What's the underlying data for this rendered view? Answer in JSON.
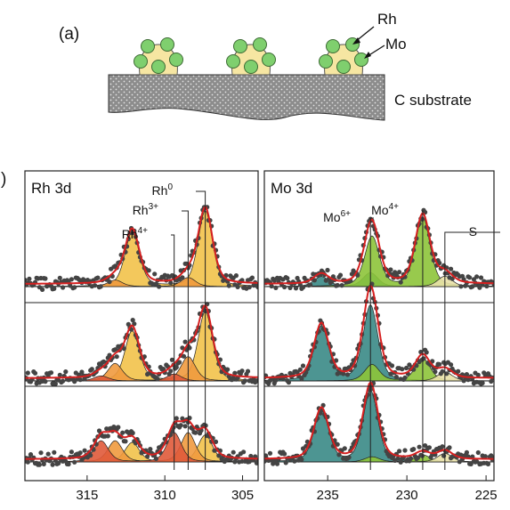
{
  "colors": {
    "envelope": "#d62020",
    "data_points": "#444444",
    "rh_metal": "#f2c24a",
    "rh_3plus": "#f09a3e",
    "rh_4plus": "#e05a3a",
    "mo_6plus": "#3a8a86",
    "mo_4plus": "#8dc43a",
    "s_2s": "#e9e1a8",
    "particle_core": "#f6e6a2",
    "mo_atom": "#7fcf6e",
    "substrate": "#8a8a8a"
  },
  "schematic": {
    "panel_label": "(a)",
    "rh_label": "Rh",
    "mo_label": "Mo",
    "substrate_label": "C substrate"
  },
  "panel_b": {
    "panel_label": ")",
    "left_title": "Rh 3d",
    "right_title": "Mo 3d",
    "left_peak_labels": [
      "Rh0",
      "Rh3+",
      "Rh4+"
    ],
    "right_peak_labels": [
      "Mo6+",
      "Mo4+",
      "S"
    ]
  },
  "chart_data": [
    {
      "type": "line",
      "title": "Rh 3d",
      "xlabel": "",
      "ylabel": "",
      "xlim": [
        319,
        304
      ],
      "x_ticks": [
        315,
        310,
        305
      ],
      "stacked_spectra": 3,
      "components": [
        {
          "name": "Rh0",
          "peaks_eV": [
            307.4,
            312.1
          ]
        },
        {
          "name": "Rh3+",
          "peaks_eV": [
            308.5,
            313.2
          ]
        },
        {
          "name": "Rh4+",
          "peaks_eV": [
            309.4,
            314.1
          ]
        }
      ],
      "series": [
        {
          "row": "top",
          "Rh0": 1.0,
          "Rh3+": 0.12,
          "Rh4+": 0.0
        },
        {
          "row": "middle",
          "Rh0": 1.0,
          "Rh3+": 0.35,
          "Rh4+": 0.1
        },
        {
          "row": "bottom",
          "Rh0": 0.55,
          "Rh3+": 0.6,
          "Rh4+": 0.6
        }
      ]
    },
    {
      "type": "line",
      "title": "Mo 3d",
      "xlabel": "",
      "ylabel": "",
      "xlim": [
        239,
        224.5
      ],
      "x_ticks": [
        235,
        230,
        225
      ],
      "stacked_spectra": 3,
      "components": [
        {
          "name": "Mo6+",
          "peaks_eV": [
            232.3,
            235.4
          ]
        },
        {
          "name": "Mo4+",
          "peaks_eV": [
            229.0,
            232.2
          ]
        },
        {
          "name": "S",
          "peaks_eV": [
            227.6
          ]
        }
      ],
      "series": [
        {
          "row": "top",
          "Mo6+": 0.2,
          "Mo4+": 1.0,
          "S": 0.15
        },
        {
          "row": "middle",
          "Mo6+": 1.0,
          "Mo4+": 0.3,
          "S": 0.12
        },
        {
          "row": "bottom",
          "Mo6+": 1.0,
          "Mo4+": 0.1,
          "S": 0.12
        }
      ]
    }
  ]
}
